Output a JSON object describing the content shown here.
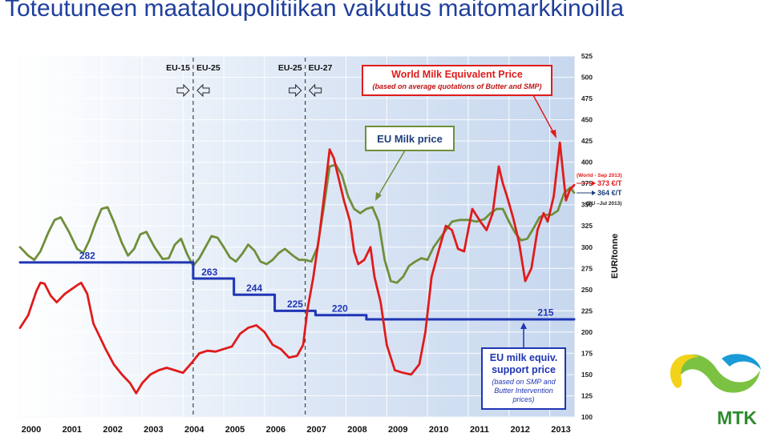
{
  "page": {
    "title": "Toteutuneen maataloupolitiikan vaikutus maitomarkkinoilla"
  },
  "logo": {
    "text": "MTK"
  },
  "colors": {
    "title": "#1f3f9c",
    "world_price": "#e01b1b",
    "eu_milk_price": "#6f8f3a",
    "support_price": "#1f35b5",
    "logo_yellow": "#f2d31a",
    "logo_green": "#7cc242",
    "logo_blue": "#1a9bd7",
    "logo_text": "#2e8b2e"
  },
  "chart_data": {
    "type": "line",
    "ylabel": "EUR/tonne",
    "ylim": [
      100,
      525
    ],
    "yticks": [
      100,
      125,
      150,
      175,
      200,
      225,
      250,
      275,
      300,
      325,
      350,
      375,
      400,
      425,
      450,
      475,
      500,
      525
    ],
    "xlim": [
      2000,
      2013.6
    ],
    "xticks": [
      2000,
      2001,
      2002,
      2003,
      2004,
      2005,
      2006,
      2007,
      2008,
      2009,
      2010,
      2011,
      2012,
      2013
    ],
    "grid": true,
    "series": [
      {
        "name": "World Milk Equivalent Price",
        "color": "#e01b1b",
        "points": [
          [
            2000.0,
            205
          ],
          [
            2000.2,
            220
          ],
          [
            2000.4,
            248
          ],
          [
            2000.5,
            258
          ],
          [
            2000.6,
            257
          ],
          [
            2000.75,
            243
          ],
          [
            2000.9,
            235
          ],
          [
            2001.1,
            245
          ],
          [
            2001.25,
            250
          ],
          [
            2001.4,
            255
          ],
          [
            2001.5,
            258
          ],
          [
            2001.65,
            245
          ],
          [
            2001.8,
            210
          ],
          [
            2001.95,
            195
          ],
          [
            2002.1,
            180
          ],
          [
            2002.3,
            162
          ],
          [
            2002.5,
            150
          ],
          [
            2002.7,
            140
          ],
          [
            2002.85,
            128
          ],
          [
            2003.0,
            140
          ],
          [
            2003.2,
            150
          ],
          [
            2003.4,
            155
          ],
          [
            2003.6,
            158
          ],
          [
            2003.8,
            155
          ],
          [
            2004.0,
            152
          ],
          [
            2004.2,
            163
          ],
          [
            2004.4,
            175
          ],
          [
            2004.6,
            178
          ],
          [
            2004.8,
            177
          ],
          [
            2005.0,
            180
          ],
          [
            2005.2,
            183
          ],
          [
            2005.4,
            198
          ],
          [
            2005.6,
            205
          ],
          [
            2005.8,
            208
          ],
          [
            2006.0,
            200
          ],
          [
            2006.2,
            185
          ],
          [
            2006.4,
            180
          ],
          [
            2006.6,
            170
          ],
          [
            2006.8,
            172
          ],
          [
            2006.95,
            185
          ],
          [
            2007.05,
            225
          ],
          [
            2007.2,
            265
          ],
          [
            2007.35,
            315
          ],
          [
            2007.5,
            375
          ],
          [
            2007.6,
            415
          ],
          [
            2007.7,
            405
          ],
          [
            2007.8,
            385
          ],
          [
            2007.95,
            355
          ],
          [
            2008.1,
            330
          ],
          [
            2008.2,
            295
          ],
          [
            2008.3,
            280
          ],
          [
            2008.45,
            285
          ],
          [
            2008.6,
            300
          ],
          [
            2008.7,
            265
          ],
          [
            2008.85,
            235
          ],
          [
            2009.0,
            185
          ],
          [
            2009.2,
            155
          ],
          [
            2009.4,
            152
          ],
          [
            2009.6,
            150
          ],
          [
            2009.8,
            162
          ],
          [
            2009.95,
            200
          ],
          [
            2010.1,
            265
          ],
          [
            2010.3,
            300
          ],
          [
            2010.45,
            325
          ],
          [
            2010.6,
            320
          ],
          [
            2010.75,
            298
          ],
          [
            2010.9,
            295
          ],
          [
            2011.1,
            345
          ],
          [
            2011.3,
            330
          ],
          [
            2011.45,
            320
          ],
          [
            2011.6,
            340
          ],
          [
            2011.75,
            395
          ],
          [
            2011.85,
            375
          ],
          [
            2011.95,
            360
          ],
          [
            2012.1,
            335
          ],
          [
            2012.25,
            305
          ],
          [
            2012.4,
            260
          ],
          [
            2012.55,
            275
          ],
          [
            2012.7,
            320
          ],
          [
            2012.85,
            340
          ],
          [
            2012.95,
            330
          ],
          [
            2013.1,
            360
          ],
          [
            2013.25,
            423
          ],
          [
            2013.4,
            355
          ],
          [
            2013.5,
            368
          ],
          [
            2013.6,
            373
          ]
        ]
      },
      {
        "name": "EU Milk price",
        "color": "#6f8f3a",
        "points": [
          [
            2000.0,
            300
          ],
          [
            2000.2,
            290
          ],
          [
            2000.35,
            285
          ],
          [
            2000.5,
            295
          ],
          [
            2000.7,
            318
          ],
          [
            2000.85,
            332
          ],
          [
            2001.0,
            335
          ],
          [
            2001.2,
            318
          ],
          [
            2001.4,
            298
          ],
          [
            2001.55,
            293
          ],
          [
            2001.7,
            308
          ],
          [
            2001.85,
            328
          ],
          [
            2002.0,
            345
          ],
          [
            2002.15,
            347
          ],
          [
            2002.3,
            330
          ],
          [
            2002.5,
            305
          ],
          [
            2002.65,
            290
          ],
          [
            2002.8,
            298
          ],
          [
            2002.95,
            315
          ],
          [
            2003.1,
            318
          ],
          [
            2003.3,
            300
          ],
          [
            2003.5,
            286
          ],
          [
            2003.65,
            287
          ],
          [
            2003.8,
            303
          ],
          [
            2003.95,
            310
          ],
          [
            2004.1,
            292
          ],
          [
            2004.25,
            278
          ],
          [
            2004.4,
            287
          ],
          [
            2004.55,
            300
          ],
          [
            2004.7,
            313
          ],
          [
            2004.85,
            311
          ],
          [
            2005.0,
            300
          ],
          [
            2005.15,
            288
          ],
          [
            2005.3,
            283
          ],
          [
            2005.45,
            292
          ],
          [
            2005.6,
            303
          ],
          [
            2005.75,
            296
          ],
          [
            2005.9,
            283
          ],
          [
            2006.05,
            280
          ],
          [
            2006.2,
            285
          ],
          [
            2006.35,
            293
          ],
          [
            2006.5,
            298
          ],
          [
            2006.7,
            290
          ],
          [
            2006.85,
            285
          ],
          [
            2007.0,
            285
          ],
          [
            2007.15,
            283
          ],
          [
            2007.3,
            300
          ],
          [
            2007.45,
            345
          ],
          [
            2007.6,
            395
          ],
          [
            2007.75,
            397
          ],
          [
            2007.9,
            385
          ],
          [
            2008.05,
            360
          ],
          [
            2008.2,
            345
          ],
          [
            2008.35,
            340
          ],
          [
            2008.5,
            345
          ],
          [
            2008.65,
            347
          ],
          [
            2008.8,
            330
          ],
          [
            2008.95,
            285
          ],
          [
            2009.1,
            260
          ],
          [
            2009.25,
            258
          ],
          [
            2009.4,
            265
          ],
          [
            2009.55,
            278
          ],
          [
            2009.7,
            283
          ],
          [
            2009.85,
            287
          ],
          [
            2010.0,
            285
          ],
          [
            2010.15,
            300
          ],
          [
            2010.3,
            310
          ],
          [
            2010.45,
            320
          ],
          [
            2010.6,
            330
          ],
          [
            2010.8,
            332
          ],
          [
            2011.0,
            332
          ],
          [
            2011.2,
            330
          ],
          [
            2011.4,
            333
          ],
          [
            2011.55,
            340
          ],
          [
            2011.7,
            345
          ],
          [
            2011.85,
            345
          ],
          [
            2012.0,
            330
          ],
          [
            2012.15,
            317
          ],
          [
            2012.3,
            308
          ],
          [
            2012.45,
            310
          ],
          [
            2012.6,
            322
          ],
          [
            2012.75,
            335
          ],
          [
            2012.9,
            338
          ],
          [
            2013.05,
            338
          ],
          [
            2013.2,
            343
          ],
          [
            2013.35,
            363
          ],
          [
            2013.5,
            370
          ],
          [
            2013.6,
            364
          ]
        ]
      },
      {
        "name": "EU milk equiv. support price",
        "color": "#1f35b5",
        "points": [
          [
            2000.0,
            282
          ],
          [
            2004.25,
            282
          ],
          [
            2004.25,
            263
          ],
          [
            2005.25,
            263
          ],
          [
            2005.25,
            244
          ],
          [
            2006.25,
            244
          ],
          [
            2006.25,
            225
          ],
          [
            2007.25,
            225
          ],
          [
            2007.25,
            220
          ],
          [
            2008.5,
            220
          ],
          [
            2008.5,
            215
          ],
          [
            2013.6,
            215
          ]
        ]
      }
    ],
    "step_labels": [
      {
        "text": "282",
        "x": 2001.65,
        "y": 286
      },
      {
        "text": "263",
        "x": 2004.65,
        "y": 267
      },
      {
        "text": "244",
        "x": 2005.75,
        "y": 248
      },
      {
        "text": "225",
        "x": 2006.75,
        "y": 229
      },
      {
        "text": "220",
        "x": 2007.85,
        "y": 224
      },
      {
        "text": "215",
        "x": 2012.9,
        "y": 219
      }
    ],
    "periods": [
      {
        "x": 2004.25,
        "left": "EU-15",
        "right": "EU-25"
      },
      {
        "x": 2007.0,
        "left": "EU-25",
        "right": "EU-27"
      }
    ],
    "annotations": {
      "world_box": {
        "title": "World Milk Equivalent Price",
        "subtitle": "(based on average quotations of Butter and SMP)"
      },
      "eu_box": {
        "title": "EU Milk price"
      },
      "support_box": {
        "line1": "EU milk equiv.",
        "line2": "support price",
        "line3": "(based on SMP and",
        "line4": "Butter Intervention",
        "line5": "prices)"
      },
      "world_note": "(World - Sep 2013)",
      "world_value": "373 €/T",
      "eu_value": "364 €/T",
      "eu_note": "(EU –Jul 2013)"
    }
  }
}
